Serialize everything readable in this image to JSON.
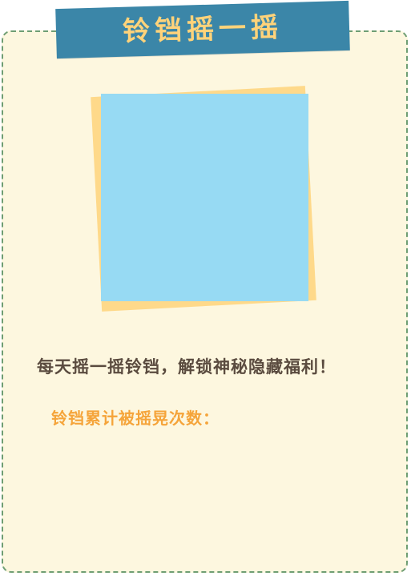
{
  "header": {
    "title": "铃铛摇一摇"
  },
  "main": {
    "slogan": "每天摇一摇铃铛，解锁神秘隐藏福利！",
    "count_label": "铃铛累计被摇晃次数："
  },
  "colors": {
    "banner": "#3b86a8",
    "title_text": "#ffd37a",
    "card_background": "#fdf7df",
    "card_border": "#6f9e73",
    "photo_front": "#97daf3",
    "photo_back": "#fed98a",
    "slogan_text": "#5a4b3f",
    "count_label_text": "#f5a43a"
  }
}
